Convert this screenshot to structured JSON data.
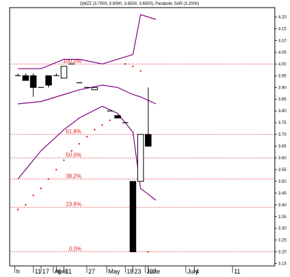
{
  "chart_data": {
    "type": "candlestick",
    "title": "QMZZ (3.7000, 3.9000, 3.6500, 3.6500), Parabolic SAR (3.2000)",
    "ylim": [
      3.14,
      4.24
    ],
    "y_ticks": [
      "4.20",
      "4.15",
      "4.10",
      "4.05",
      "4.00",
      "3.95",
      "3.90",
      "3.85",
      "3.80",
      "3.75",
      "3.70",
      "3.65",
      "3.60",
      "3.55",
      "3.50",
      "3.45",
      "3.40",
      "3.35",
      "3.30",
      "3.25",
      "3.20",
      "3.15"
    ],
    "x_date_labels": [
      {
        "label": "h",
        "i": -0.4
      },
      {
        "label": "11",
        "i": 2
      },
      {
        "label": "17",
        "i": 3
      },
      {
        "label": "April",
        "i": 4.6
      },
      {
        "label": "6",
        "i": 5
      },
      {
        "label": "11",
        "i": 6
      },
      {
        "label": "27",
        "i": 9
      },
      {
        "label": "May",
        "i": 11.6
      },
      {
        "label": "18",
        "i": 14
      },
      {
        "label": "23",
        "i": 15
      },
      {
        "label": "June",
        "i": 16.6
      },
      {
        "label": "27",
        "i": 17
      },
      {
        "label": "July",
        "i": 21.9
      },
      {
        "label": "4",
        "i": 23
      },
      {
        "label": "11",
        "i": 28
      }
    ],
    "candles": [
      {
        "i": 0,
        "open": 3.95,
        "high": 3.96,
        "low": 3.95,
        "close": 3.95
      },
      {
        "i": 1,
        "open": 3.95,
        "high": 3.96,
        "low": 3.93,
        "close": 3.93
      },
      {
        "i": 2,
        "open": 3.95,
        "high": 3.96,
        "low": 3.86,
        "close": 3.9
      },
      {
        "i": 3,
        "open": 3.9,
        "high": 3.9,
        "low": 3.9,
        "close": 3.9
      },
      {
        "i": 4,
        "open": 3.95,
        "high": 3.95,
        "low": 3.9,
        "close": 3.91
      },
      {
        "i": 5,
        "open": 3.95,
        "high": 3.96,
        "low": 3.95,
        "close": 3.95
      },
      {
        "i": 6,
        "open": 3.94,
        "high": 3.99,
        "low": 3.94,
        "close": 3.99
      },
      {
        "i": 7,
        "open": 4.0,
        "high": 4.0,
        "low": 4.0,
        "close": 4.0
      },
      {
        "i": 8,
        "open": 3.92,
        "high": 3.92,
        "low": 3.92,
        "close": 3.92
      },
      {
        "i": 9,
        "open": 3.9,
        "high": 3.9,
        "low": 3.9,
        "close": 3.9
      },
      {
        "i": 10,
        "open": 3.89,
        "high": 3.9,
        "low": 3.89,
        "close": 3.9
      },
      {
        "i": 12,
        "open": 3.8,
        "high": 3.8,
        "low": 3.8,
        "close": 3.8
      },
      {
        "i": 13,
        "open": 3.78,
        "high": 3.78,
        "low": 3.77,
        "close": 3.77
      },
      {
        "i": 14,
        "open": 3.75,
        "high": 3.75,
        "low": 3.75,
        "close": 3.75
      },
      {
        "i": 15,
        "open": 3.5,
        "high": 3.5,
        "low": 3.2,
        "close": 3.2
      },
      {
        "i": 16,
        "open": 3.5,
        "high": 3.7,
        "low": 3.5,
        "close": 3.7
      },
      {
        "i": 17,
        "open": 3.7,
        "high": 3.9,
        "low": 3.65,
        "close": 3.65
      }
    ],
    "parabolic_sar": [
      {
        "i": 0,
        "value": 3.38
      },
      {
        "i": 1,
        "value": 3.4
      },
      {
        "i": 2,
        "value": 3.44
      },
      {
        "i": 3,
        "value": 3.47
      },
      {
        "i": 4,
        "value": 3.51
      },
      {
        "i": 5,
        "value": 3.55
      },
      {
        "i": 6,
        "value": 3.59
      },
      {
        "i": 7,
        "value": 3.63
      },
      {
        "i": 8,
        "value": 3.66
      },
      {
        "i": 9,
        "value": 3.69
      },
      {
        "i": 10,
        "value": 3.72
      },
      {
        "i": 11,
        "value": 3.74
      },
      {
        "i": 12,
        "value": 3.76
      },
      {
        "i": 13,
        "value": 3.78
      },
      {
        "i": 14,
        "value": 4.0
      },
      {
        "i": 15,
        "value": 3.99
      },
      {
        "i": 16,
        "value": 3.97
      },
      {
        "i": 17,
        "value": 3.2
      }
    ],
    "bands": [
      {
        "name": "upper",
        "points": [
          {
            "i": 0,
            "value": 3.98
          },
          {
            "i": 3,
            "value": 3.98
          },
          {
            "i": 6,
            "value": 4.02
          },
          {
            "i": 8,
            "value": 4.02
          },
          {
            "i": 11,
            "value": 4.0
          },
          {
            "i": 13,
            "value": 4.02
          },
          {
            "i": 15,
            "value": 4.04
          },
          {
            "i": 16,
            "value": 4.21
          },
          {
            "i": 18,
            "value": 4.19
          }
        ]
      },
      {
        "name": "middle",
        "points": [
          {
            "i": 0,
            "value": 3.83
          },
          {
            "i": 3,
            "value": 3.84
          },
          {
            "i": 6,
            "value": 3.87
          },
          {
            "i": 8,
            "value": 3.89
          },
          {
            "i": 11,
            "value": 3.91
          },
          {
            "i": 13,
            "value": 3.9
          },
          {
            "i": 15,
            "value": 3.87
          },
          {
            "i": 16,
            "value": 3.86
          },
          {
            "i": 18,
            "value": 3.83
          }
        ]
      },
      {
        "name": "lower",
        "points": [
          {
            "i": 0,
            "value": 3.51
          },
          {
            "i": 3,
            "value": 3.63
          },
          {
            "i": 6,
            "value": 3.72
          },
          {
            "i": 8,
            "value": 3.77
          },
          {
            "i": 11,
            "value": 3.82
          },
          {
            "i": 13,
            "value": 3.79
          },
          {
            "i": 15,
            "value": 3.71
          },
          {
            "i": 16,
            "value": 3.47
          },
          {
            "i": 18,
            "value": 3.42
          }
        ]
      }
    ],
    "fib_levels": [
      {
        "label": "100.0%",
        "value": 4.0
      },
      {
        "label": "61.8%",
        "value": 3.7
      },
      {
        "label": "50.0%",
        "value": 3.6
      },
      {
        "label": "38.2%",
        "value": 3.51
      },
      {
        "label": "23.6%",
        "value": 3.39
      },
      {
        "label": "0.0%",
        "value": 3.2
      }
    ],
    "grid": false,
    "colors": {
      "band": "#800080",
      "fib": "#dd2222",
      "sar": "#dd2222",
      "candle": "#000000"
    }
  }
}
